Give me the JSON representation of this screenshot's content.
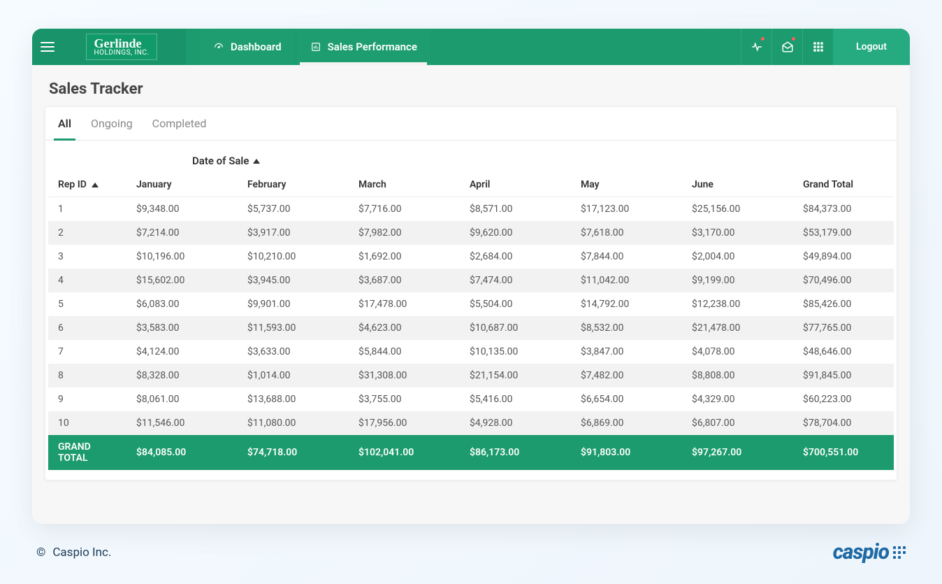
{
  "brand": {
    "line1": "Gerlinde",
    "line2": "HOLDINGS, INC."
  },
  "nav": {
    "items": [
      {
        "label": "Dashboard",
        "active": false
      },
      {
        "label": "Sales Performance",
        "active": true
      }
    ]
  },
  "header_actions": {
    "logout": "Logout"
  },
  "page": {
    "title": "Sales Tracker"
  },
  "tabs": [
    {
      "label": "All",
      "active": true
    },
    {
      "label": "Ongoing",
      "active": false
    },
    {
      "label": "Completed",
      "active": false
    }
  ],
  "table": {
    "super_header": "Date of Sale",
    "rep_header": "Rep ID",
    "grand_total_header": "Grand Total",
    "columns": [
      "January",
      "February",
      "March",
      "April",
      "May",
      "June"
    ],
    "rows": [
      {
        "rep": "1",
        "values": [
          "$9,348.00",
          "$5,737.00",
          "$7,716.00",
          "$8,571.00",
          "$17,123.00",
          "$25,156.00"
        ],
        "total": "$84,373.00"
      },
      {
        "rep": "2",
        "values": [
          "$7,214.00",
          "$3,917.00",
          "$7,982.00",
          "$9,620.00",
          "$7,618.00",
          "$3,170.00"
        ],
        "total": "$53,179.00"
      },
      {
        "rep": "3",
        "values": [
          "$10,196.00",
          "$10,210.00",
          "$1,692.00",
          "$2,684.00",
          "$7,844.00",
          "$2,004.00"
        ],
        "total": "$49,894.00"
      },
      {
        "rep": "4",
        "values": [
          "$15,602.00",
          "$3,945.00",
          "$3,687.00",
          "$7,474.00",
          "$11,042.00",
          "$9,199.00"
        ],
        "total": "$70,496.00"
      },
      {
        "rep": "5",
        "values": [
          "$6,083.00",
          "$9,901.00",
          "$17,478.00",
          "$5,504.00",
          "$14,792.00",
          "$12,238.00"
        ],
        "total": "$85,426.00"
      },
      {
        "rep": "6",
        "values": [
          "$3,583.00",
          "$11,593.00",
          "$4,623.00",
          "$10,687.00",
          "$8,532.00",
          "$21,478.00"
        ],
        "total": "$77,765.00"
      },
      {
        "rep": "7",
        "values": [
          "$4,124.00",
          "$3,633.00",
          "$5,844.00",
          "$10,135.00",
          "$3,847.00",
          "$4,078.00"
        ],
        "total": "$48,646.00"
      },
      {
        "rep": "8",
        "values": [
          "$8,328.00",
          "$1,014.00",
          "$31,308.00",
          "$21,154.00",
          "$7,482.00",
          "$8,808.00"
        ],
        "total": "$91,845.00"
      },
      {
        "rep": "9",
        "values": [
          "$8,061.00",
          "$13,688.00",
          "$3,755.00",
          "$5,416.00",
          "$6,654.00",
          "$4,329.00"
        ],
        "total": "$60,223.00"
      },
      {
        "rep": "10",
        "values": [
          "$11,546.00",
          "$11,080.00",
          "$17,956.00",
          "$4,928.00",
          "$6,869.00",
          "$6,807.00"
        ],
        "total": "$78,704.00"
      }
    ],
    "grand_total_row": {
      "label": "GRAND TOTAL",
      "values": [
        "$84,085.00",
        "$74,718.00",
        "$102,041.00",
        "$86,173.00",
        "$91,803.00",
        "$97,267.00"
      ],
      "total": "$700,551.00"
    },
    "colors": {
      "header_bg": "#1c9b6e",
      "row_alt_bg": "#f2f2f2",
      "grand_row_bg": "#1c9b6e",
      "grand_row_text": "#ffffff"
    }
  },
  "footer": {
    "copyright": "Caspio Inc.",
    "logo_text": "caspio"
  }
}
